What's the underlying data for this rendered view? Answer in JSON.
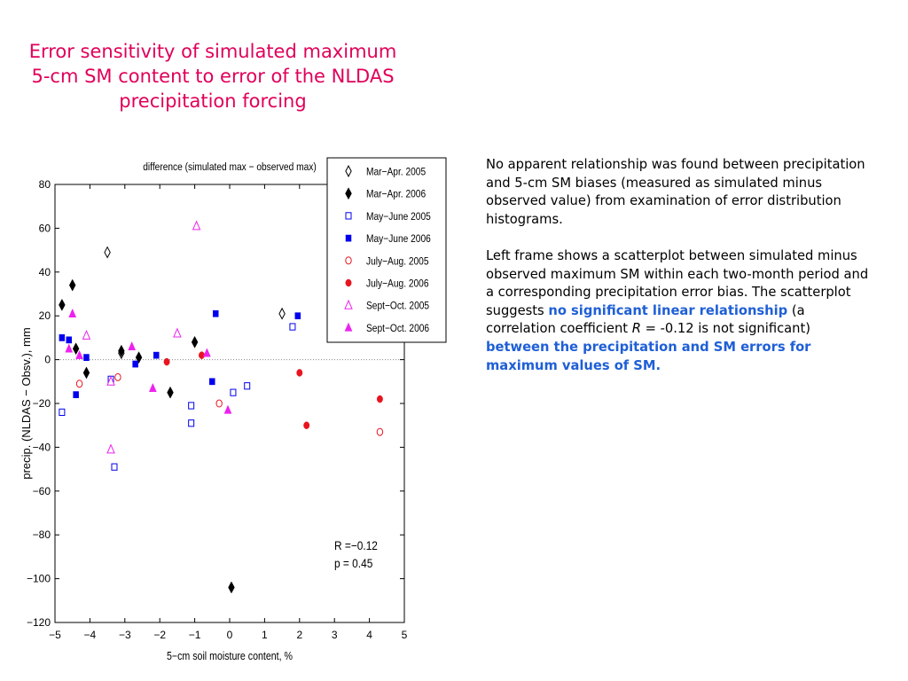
{
  "title_lines": [
    "Error sensitivity of simulated maximum",
    "5-cm SM content to error of the NLDAS",
    "precipitation forcing"
  ],
  "paragraph1": "No apparent relationship was found between precipitation and 5-cm SM biases (measured as simulated minus observed value) from examination of error distribution histograms.",
  "paragraph2": {
    "part1": "Left frame shows a scatterplot between simulated minus observed maximum SM within each two-month period  and a corresponding precipitation error bias. The scatterplot suggests ",
    "highlight1": "no significant linear relationship",
    "part2": " (a correlation coefficient ",
    "r_symbol": "R",
    "part3": " = -0.12 is not significant) ",
    "highlight2": "between the precipitation and SM errors for maximum values of SM."
  },
  "colors": {
    "title": "#e0005a",
    "highlight": "#1f5fd6",
    "black_series": "#000000",
    "blue_series": "#0000ee",
    "red_series": "#e8141e",
    "magenta_series": "#ee22ee"
  },
  "chart_data": {
    "type": "scatter",
    "title": "difference (simulated max − observed max)",
    "xlabel": "5−cm soil moisture content, %",
    "ylabel": "precip. (NLDAS − Obsv.), mm",
    "xlim": [
      -5,
      5
    ],
    "ylim": [
      -120,
      80
    ],
    "xticks": [
      -5,
      -4,
      -3,
      -2,
      -1,
      0,
      1,
      2,
      3,
      4,
      5
    ],
    "yticks": [
      -120,
      -100,
      -80,
      -60,
      -40,
      -20,
      0,
      20,
      40,
      60,
      80
    ],
    "zero_line": true,
    "grid": false,
    "legend_position": "top-right",
    "annotation": [
      "R =−0.12",
      "p = 0.45"
    ],
    "series": [
      {
        "name": "Mar−Apr. 2005",
        "marker": "diamond-open",
        "color": "#000000",
        "points": [
          [
            -3.5,
            49
          ],
          [
            -3.1,
            3
          ],
          [
            1.5,
            21
          ]
        ]
      },
      {
        "name": "Mar−Apr. 2006",
        "marker": "diamond-filled",
        "color": "#000000",
        "points": [
          [
            -4.8,
            25
          ],
          [
            -4.5,
            34
          ],
          [
            -4.4,
            5
          ],
          [
            -4.1,
            -6
          ],
          [
            -3.1,
            4
          ],
          [
            -2.6,
            1
          ],
          [
            -1.7,
            -15
          ],
          [
            -1.0,
            8
          ],
          [
            0.05,
            -104
          ]
        ]
      },
      {
        "name": "May−June 2005",
        "marker": "square-open",
        "color": "#0000ee",
        "points": [
          [
            -4.8,
            -24
          ],
          [
            -3.4,
            -9
          ],
          [
            -3.3,
            -49
          ],
          [
            -1.1,
            -21
          ],
          [
            -1.1,
            -29
          ],
          [
            0.1,
            -15
          ],
          [
            0.5,
            -12
          ],
          [
            1.8,
            15
          ]
        ]
      },
      {
        "name": "May−June 2006",
        "marker": "square-filled",
        "color": "#0000ee",
        "points": [
          [
            -4.8,
            10
          ],
          [
            -4.6,
            9
          ],
          [
            -4.4,
            -16
          ],
          [
            -4.1,
            1
          ],
          [
            -2.7,
            -2
          ],
          [
            -2.1,
            2
          ],
          [
            -0.5,
            -10
          ],
          [
            -0.4,
            21
          ],
          [
            1.95,
            20
          ]
        ]
      },
      {
        "name": "July−Aug. 2005",
        "marker": "circle-open",
        "color": "#e8141e",
        "points": [
          [
            -4.3,
            -11
          ],
          [
            -3.2,
            -8
          ],
          [
            -0.3,
            -20
          ],
          [
            4.3,
            -33
          ]
        ]
      },
      {
        "name": "July−Aug. 2006",
        "marker": "circle-filled",
        "color": "#e8141e",
        "points": [
          [
            -1.8,
            -1
          ],
          [
            -0.8,
            2
          ],
          [
            2.0,
            -6
          ],
          [
            2.2,
            -30
          ],
          [
            4.3,
            -18
          ]
        ]
      },
      {
        "name": "Sept−Oct. 2005",
        "marker": "triangle-open",
        "color": "#ee22ee",
        "points": [
          [
            -4.1,
            11
          ],
          [
            -3.4,
            -10
          ],
          [
            -3.4,
            -41
          ],
          [
            -1.5,
            12
          ],
          [
            -0.95,
            61
          ]
        ]
      },
      {
        "name": "Sept−Oct. 2006",
        "marker": "triangle-filled",
        "color": "#ee22ee",
        "points": [
          [
            -4.6,
            5
          ],
          [
            -4.5,
            21
          ],
          [
            -4.3,
            2
          ],
          [
            -2.8,
            6
          ],
          [
            -2.2,
            -13
          ],
          [
            -0.65,
            3
          ],
          [
            -0.05,
            -23
          ]
        ]
      }
    ]
  }
}
